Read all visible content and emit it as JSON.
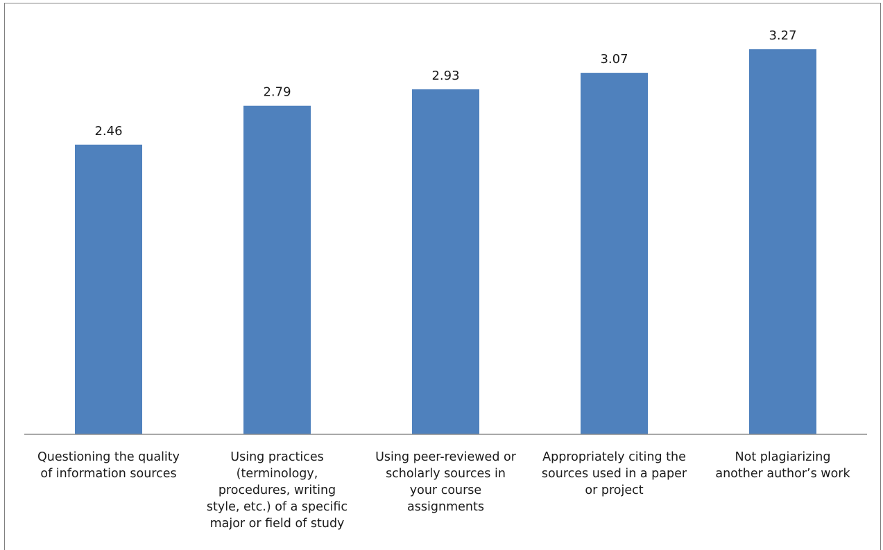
{
  "chart_data": {
    "type": "bar",
    "title": "",
    "xlabel": "",
    "ylabel": "",
    "ylim": [
      0,
      3.5
    ],
    "grid": false,
    "legend": "none",
    "bar_color": "#4f81bd",
    "categories": [
      "Questioning the quality of information sources",
      "Using practices (terminology, procedures, writing style, etc.) of a specific major or field of study",
      "Using peer-reviewed or scholarly sources in your course assignments",
      "Appropriately citing the sources used in a paper or project",
      "Not plagiarizing another author’s work"
    ],
    "category_lines": [
      [
        "Questioning the quality",
        "of information sources"
      ],
      [
        "Using practices",
        "(terminology,",
        "procedures, writing",
        "style, etc.) of a specific",
        "major or field of study"
      ],
      [
        "Using peer-reviewed or",
        "scholarly sources in",
        "your course",
        "assignments"
      ],
      [
        "Appropriately citing the",
        "sources used in a paper",
        "or project"
      ],
      [
        "Not plagiarizing",
        "another author’s work"
      ]
    ],
    "values": [
      2.46,
      2.79,
      2.93,
      3.07,
      3.27
    ],
    "data_labels": [
      "2.46",
      "2.79",
      "2.93",
      "3.07",
      "3.27"
    ]
  }
}
